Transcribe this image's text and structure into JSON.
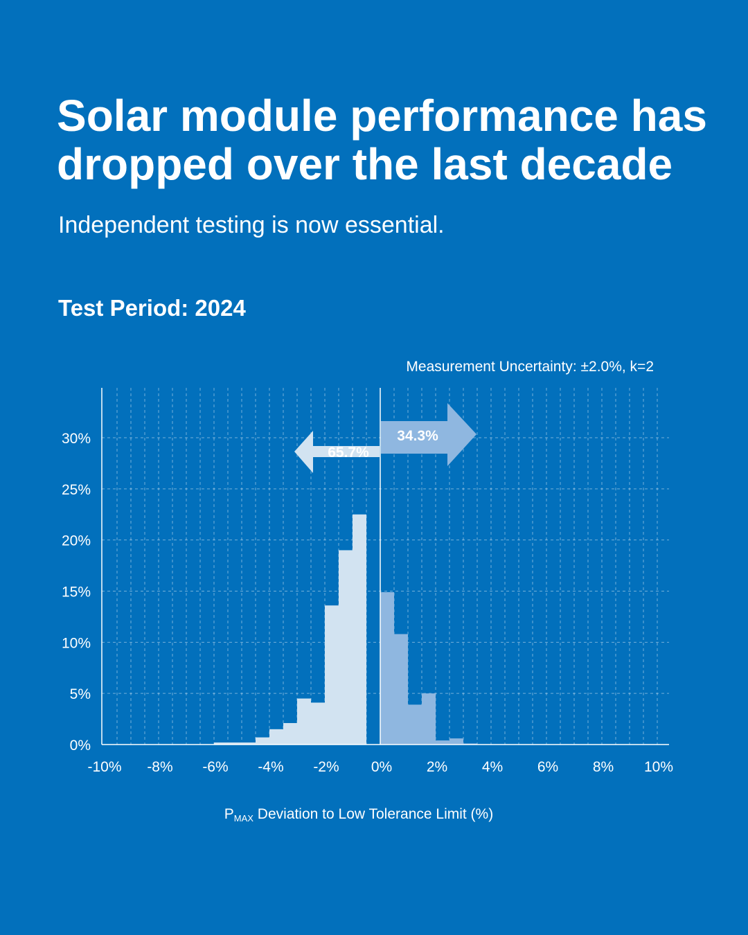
{
  "header": {
    "title": "Solar module performance has dropped over the last decade",
    "subtitle": "Independent testing is now essential.",
    "period": "Test Period: 2024"
  },
  "colors": {
    "background": "#0270bc",
    "below_limit_bars": "#d2e3f1",
    "above_limit_bars": "#8fb7e0",
    "text": "#ffffff"
  },
  "chart_data": {
    "type": "bar",
    "xlabel_prefix": "P",
    "xlabel_sub": "MAX",
    "xlabel_rest": " Deviation to Low Tolerance Limit (%)",
    "annotation": "Measurement Uncertainty: ±2.0%, k=2",
    "xlim": [
      -10,
      10
    ],
    "ylim": [
      0,
      35
    ],
    "x_ticks": [
      "-10%",
      "-8%",
      "-6%",
      "-4%",
      "-2%",
      "0%",
      "2%",
      "4%",
      "6%",
      "8%",
      "10%"
    ],
    "x_tick_values": [
      -10,
      -8,
      -6,
      -4,
      -2,
      0,
      2,
      4,
      6,
      8,
      10
    ],
    "y_ticks": [
      "0%",
      "5%",
      "10%",
      "15%",
      "20%",
      "25%",
      "30%"
    ],
    "y_tick_values": [
      0,
      5,
      10,
      15,
      20,
      25,
      30
    ],
    "grid": true,
    "bin_width": 0.5,
    "series": [
      {
        "name": "65.7%",
        "bin_starts": [
          -6,
          -5.5,
          -5,
          -4.5,
          -4,
          -3.5,
          -3,
          -2.5,
          -2,
          -1.5,
          -1,
          -0.5
        ],
        "values": [
          0.2,
          0.2,
          0.2,
          0.7,
          1.5,
          2.1,
          4.5,
          4.1,
          13.6,
          19.0,
          22.5,
          0
        ]
      },
      {
        "name": "34.3%",
        "bin_starts": [
          0,
          0.5,
          1,
          1.5,
          2,
          2.5,
          3
        ],
        "values": [
          14.9,
          10.8,
          3.9,
          5.0,
          0.4,
          0.6,
          0.1
        ]
      }
    ],
    "shares": {
      "below_limit": "65.7%",
      "above_limit": "34.3%"
    }
  }
}
